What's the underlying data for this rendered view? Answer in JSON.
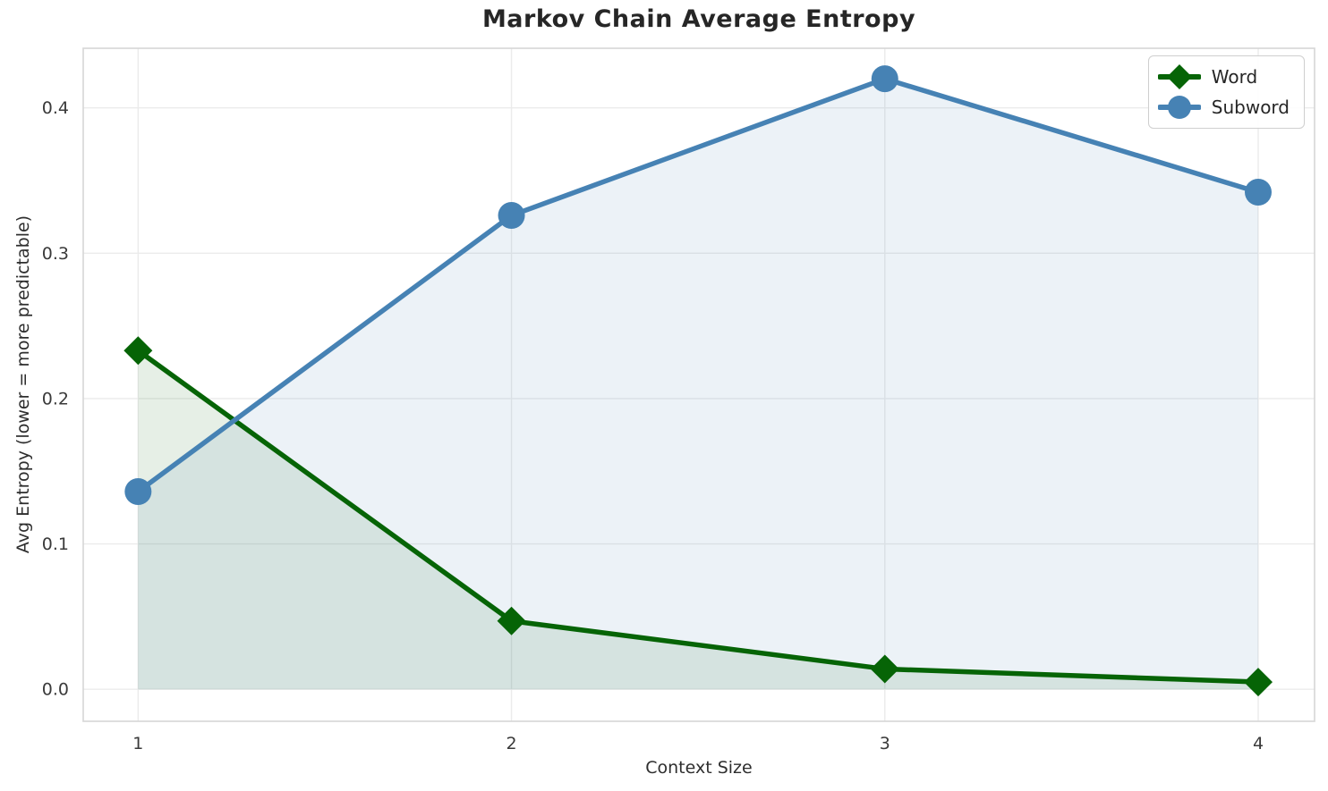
{
  "chart_data": {
    "type": "line",
    "title": "Markov Chain Average Entropy",
    "xlabel": "Context Size",
    "ylabel": "Avg Entropy (lower = more predictable)",
    "x": [
      1,
      2,
      3,
      4
    ],
    "series": [
      {
        "name": "Word",
        "values": [
          0.233,
          0.047,
          0.014,
          0.005
        ],
        "color": "#066406",
        "marker": "diamond",
        "fill_to_zero": true,
        "fill_opacity": 0.1
      },
      {
        "name": "Subword",
        "values": [
          0.136,
          0.326,
          0.42,
          0.342
        ],
        "color": "#4682B4",
        "marker": "circle",
        "fill_to_zero": true,
        "fill_opacity": 0.1
      }
    ],
    "xticks": [
      {
        "value": 1,
        "label": "1"
      },
      {
        "value": 2,
        "label": "2"
      },
      {
        "value": 3,
        "label": "3"
      },
      {
        "value": 4,
        "label": "4"
      }
    ],
    "yticks": [
      {
        "value": 0.0,
        "label": "0.0"
      },
      {
        "value": 0.1,
        "label": "0.1"
      },
      {
        "value": 0.2,
        "label": "0.2"
      },
      {
        "value": 0.3,
        "label": "0.3"
      },
      {
        "value": 0.4,
        "label": "0.4"
      }
    ],
    "xlim": [
      0.853,
      4.151
    ],
    "ylim": [
      -0.022,
      0.441
    ],
    "grid": true,
    "grid_color": "#ebebeb",
    "spine_color": "#d6d6d6",
    "tick_text_color": "#3a3a3a",
    "legend_position": "upper right",
    "line_width": 5.5,
    "marker_size": 16
  }
}
